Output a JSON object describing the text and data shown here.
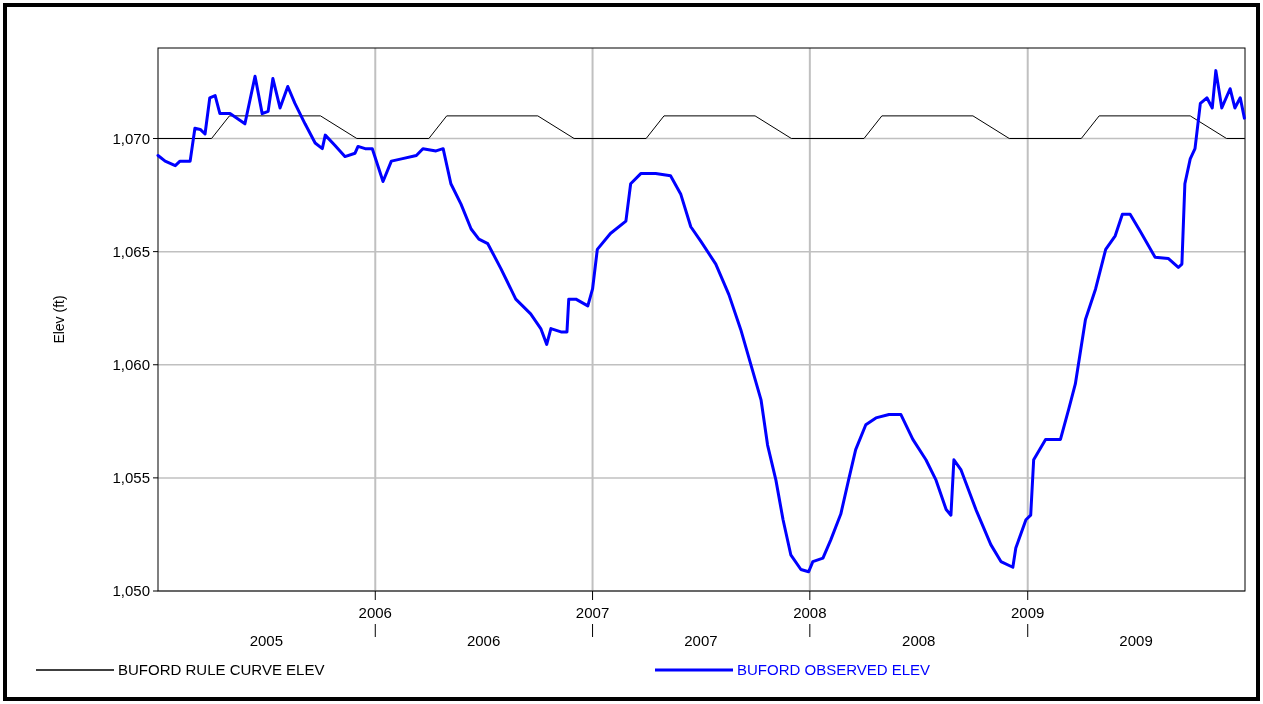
{
  "chart_data": {
    "type": "line",
    "ylabel": "Elev (ft)",
    "xlim": [
      "2005-01-01",
      "2010-01-01"
    ],
    "ylim": [
      1050,
      1074
    ],
    "yticks": [
      {
        "value": 1050,
        "label": "1,050"
      },
      {
        "value": 1055,
        "label": "1,055"
      },
      {
        "value": 1060,
        "label": "1,060"
      },
      {
        "value": 1065,
        "label": "1,065"
      },
      {
        "value": 1070,
        "label": "1,070"
      }
    ],
    "xticks": [
      {
        "value": "2006-01-01",
        "label": "2006"
      },
      {
        "value": "2007-01-01",
        "label": "2007"
      },
      {
        "value": "2008-01-01",
        "label": "2008"
      },
      {
        "value": "2009-01-01",
        "label": "2009"
      }
    ],
    "x2lim": [
      "2005-01-01",
      "2010-01-01"
    ],
    "x2ticks": [
      {
        "value": "2005-07-02",
        "label": "2005"
      },
      {
        "value": "2006-07-02",
        "label": "2006"
      },
      {
        "value": "2007-07-02",
        "label": "2007"
      },
      {
        "value": "2008-07-02",
        "label": "2008"
      },
      {
        "value": "2009-07-02",
        "label": "2009"
      }
    ],
    "grid": true,
    "legend": "bottom",
    "series": [
      {
        "name": "BUFORD RULE CURVE ELEV",
        "color": "#000000",
        "x": [
          "2005-01-01",
          "2005-04-01",
          "2005-05-01",
          "2005-10-01",
          "2005-12-01",
          "2006-04-01",
          "2006-05-01",
          "2006-10-01",
          "2006-12-01",
          "2007-04-01",
          "2007-05-01",
          "2007-10-01",
          "2007-12-01",
          "2008-04-01",
          "2008-05-01",
          "2008-10-01",
          "2008-12-01",
          "2009-04-01",
          "2009-05-01",
          "2009-10-01",
          "2009-12-01",
          "2009-12-31"
        ],
        "values": [
          1070,
          1070,
          1071,
          1071,
          1070,
          1070,
          1071,
          1071,
          1070,
          1070,
          1071,
          1071,
          1070,
          1070,
          1071,
          1071,
          1070,
          1070,
          1071,
          1071,
          1070,
          1070
        ]
      },
      {
        "name": "BUFORD OBSERVED ELEV",
        "color": "#0000ff",
        "x": [
          "2005-01-01",
          "2005-01-13",
          "2005-01-30",
          "2005-02-07",
          "2005-02-24",
          "2005-03-04",
          "2005-03-13",
          "2005-03-21",
          "2005-03-29",
          "2005-04-07",
          "2005-04-15",
          "2005-05-02",
          "2005-05-27",
          "2005-06-13",
          "2005-06-25",
          "2005-07-05",
          "2005-07-13",
          "2005-07-25",
          "2005-08-07",
          "2005-08-19",
          "2005-09-05",
          "2005-09-22",
          "2005-10-04",
          "2005-10-09",
          "2005-10-25",
          "2005-11-11",
          "2005-11-28",
          "2005-12-03",
          "2005-12-15",
          "2005-12-27",
          "2006-01-14",
          "2006-01-28",
          "2006-02-14",
          "2006-03-11",
          "2006-03-22",
          "2006-04-13",
          "2006-04-25",
          "2006-05-08",
          "2006-05-25",
          "2006-06-11",
          "2006-06-24",
          "2006-07-09",
          "2006-07-31",
          "2006-08-25",
          "2006-09-19",
          "2006-10-06",
          "2006-10-16",
          "2006-10-23",
          "2006-11-09",
          "2006-11-19",
          "2006-11-22",
          "2006-12-04",
          "2006-12-24",
          "2007-01-01",
          "2007-01-09",
          "2007-01-31",
          "2007-02-26",
          "2007-03-06",
          "2007-03-23",
          "2007-04-17",
          "2007-05-12",
          "2007-05-29",
          "2007-06-15",
          "2007-07-02",
          "2007-07-27",
          "2007-08-18",
          "2007-09-07",
          "2007-10-11",
          "2007-10-22",
          "2007-11-05",
          "2007-11-17",
          "2007-11-30",
          "2007-12-17",
          "2007-12-30",
          "2008-01-06",
          "2008-01-23",
          "2008-02-05",
          "2008-02-22",
          "2008-03-06",
          "2008-03-18",
          "2008-04-04",
          "2008-04-21",
          "2008-05-13",
          "2008-06-02",
          "2008-06-22",
          "2008-07-14",
          "2008-07-31",
          "2008-08-17",
          "2008-08-25",
          "2008-08-30",
          "2008-09-11",
          "2008-10-06",
          "2008-10-31",
          "2008-11-17",
          "2008-12-07",
          "2008-12-12",
          "2008-12-29",
          "2009-01-06",
          "2009-01-11",
          "2009-01-31",
          "2009-02-25",
          "2009-03-11",
          "2009-03-22",
          "2009-04-08",
          "2009-04-25",
          "2009-05-12",
          "2009-05-28",
          "2009-06-09",
          "2009-06-22",
          "2009-07-09",
          "2009-08-03",
          "2009-08-25",
          "2009-09-11",
          "2009-09-17",
          "2009-09-22",
          "2009-10-01",
          "2009-10-09",
          "2009-10-18",
          "2009-10-29",
          "2009-11-07",
          "2009-11-13",
          "2009-11-23",
          "2009-12-07",
          "2009-12-15",
          "2009-12-24",
          "2009-12-31"
        ],
        "values": [
          1069.25,
          1069.0,
          1068.8,
          1069.0,
          1069.0,
          1070.45,
          1070.4,
          1070.2,
          1071.8,
          1071.9,
          1071.1,
          1071.1,
          1070.65,
          1072.75,
          1071.1,
          1071.2,
          1072.65,
          1071.35,
          1072.3,
          1071.55,
          1070.65,
          1069.8,
          1069.55,
          1070.15,
          1069.7,
          1069.2,
          1069.35,
          1069.65,
          1069.55,
          1069.55,
          1068.1,
          1069.0,
          1069.1,
          1069.25,
          1069.55,
          1069.45,
          1069.55,
          1068.0,
          1067.1,
          1066.0,
          1065.55,
          1065.35,
          1064.25,
          1062.9,
          1062.25,
          1061.6,
          1060.9,
          1061.6,
          1061.45,
          1061.45,
          1062.9,
          1062.9,
          1062.6,
          1063.35,
          1065.1,
          1065.8,
          1066.35,
          1068.0,
          1068.45,
          1068.45,
          1068.35,
          1067.55,
          1066.1,
          1065.45,
          1064.45,
          1063.1,
          1061.55,
          1058.45,
          1056.45,
          1054.9,
          1053.15,
          1051.6,
          1050.95,
          1050.85,
          1051.3,
          1051.45,
          1052.25,
          1053.4,
          1054.9,
          1056.25,
          1057.35,
          1057.65,
          1057.8,
          1057.8,
          1056.7,
          1055.8,
          1054.9,
          1053.6,
          1053.35,
          1055.8,
          1055.35,
          1053.6,
          1052.05,
          1051.3,
          1051.05,
          1051.9,
          1053.15,
          1053.35,
          1055.8,
          1056.7,
          1056.7,
          1058.05,
          1059.15,
          1062.0,
          1063.35,
          1065.1,
          1065.7,
          1066.65,
          1066.65,
          1065.9,
          1064.75,
          1064.7,
          1064.3,
          1064.45,
          1068.0,
          1069.1,
          1069.55,
          1071.55,
          1071.8,
          1071.35,
          1073.0,
          1071.35,
          1072.2,
          1071.35,
          1071.8,
          1070.9
        ]
      }
    ]
  }
}
